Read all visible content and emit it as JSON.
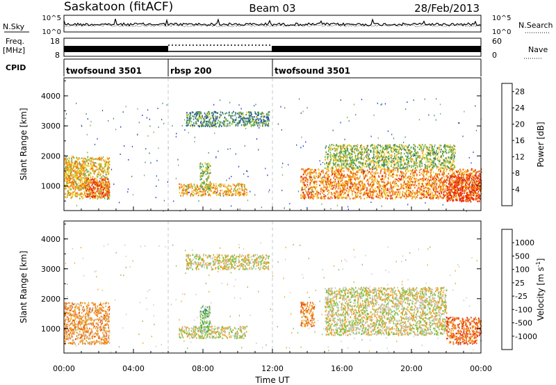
{
  "header": {
    "station": "Saskatoon (fitACF)",
    "beam": "Beam 03",
    "date": "28/Feb/2013"
  },
  "side_labels": {
    "nsky": "N.Sky",
    "nsearch": "N.Search",
    "freq_line1": "Freq.",
    "freq_line2": "[MHz]",
    "nave": "Nave",
    "cpid": "CPID"
  },
  "noise_panel": {
    "left_ticks": [
      "10^5",
      "10^0"
    ],
    "right_ticks": [
      "10^5",
      "10^0"
    ]
  },
  "freq_panel": {
    "left_ticks": [
      "18",
      "8"
    ],
    "right_ticks": [
      "60",
      "0"
    ]
  },
  "cpid_segments": [
    {
      "label": "twofsound 3501",
      "start_h": 0,
      "end_h": 6
    },
    {
      "label": "rbsp 200",
      "start_h": 6,
      "end_h": 12
    },
    {
      "label": "twofsound 3501",
      "start_h": 12,
      "end_h": 24
    }
  ],
  "colors": {
    "power_scale": [
      "#1c2fe0",
      "#2a4fa0",
      "#3f8a5c",
      "#6ab14a",
      "#f0d02c",
      "#f39a1b",
      "#f06a12",
      "#e8240e"
    ],
    "velocity_scale": [
      "#1f35d8",
      "#2f6ec0",
      "#3a9a50",
      "#7ac23c",
      "#c8c8c0",
      "#f0a020",
      "#f07818",
      "#e84010",
      "#e01010"
    ]
  },
  "chart_data": [
    {
      "type": "heatmap",
      "title": "",
      "quantity": "Power",
      "xlabel": "Time UT",
      "ylabel": "Slant Range [km]",
      "x_ticks": [
        "00:00",
        "04:00",
        "08:00",
        "12:00",
        "16:00",
        "20:00",
        "00:00"
      ],
      "y_ticks": [
        "1000",
        "2000",
        "3000",
        "4000"
      ],
      "xlim_hours": [
        0,
        24
      ],
      "ylim_km": [
        180,
        4600
      ],
      "colorbar_label": "Power [dB]",
      "colorbar_ticks": [
        "4",
        "8",
        "12",
        "16",
        "20",
        "24",
        "28"
      ],
      "colorbar_range": [
        0,
        30
      ],
      "scatter_regions": [
        {
          "t0": 0.0,
          "t1": 2.6,
          "r0": 600,
          "r1": 2000,
          "value": 18
        },
        {
          "t0": 1.2,
          "t1": 2.6,
          "r0": 650,
          "r1": 1300,
          "value": 26
        },
        {
          "t0": 0.0,
          "t1": 1.2,
          "r0": 900,
          "r1": 1800,
          "value": 20
        },
        {
          "t0": 6.6,
          "t1": 10.5,
          "r0": 700,
          "r1": 1100,
          "value": 20
        },
        {
          "t0": 7.8,
          "t1": 8.4,
          "r0": 900,
          "r1": 1800,
          "value": 14
        },
        {
          "t0": 7.0,
          "t1": 11.8,
          "r0": 3000,
          "r1": 3500,
          "value": 10
        },
        {
          "t0": 13.6,
          "t1": 24.0,
          "r0": 600,
          "r1": 1600,
          "value": 22
        },
        {
          "t0": 15.0,
          "t1": 22.5,
          "r0": 1600,
          "r1": 2400,
          "value": 14
        },
        {
          "t0": 22.0,
          "t1": 24.0,
          "r0": 500,
          "r1": 1400,
          "value": 28
        }
      ]
    },
    {
      "type": "heatmap",
      "title": "",
      "quantity": "Velocity",
      "xlabel": "Time UT",
      "ylabel": "Slant Range [km]",
      "x_ticks": [
        "00:00",
        "04:00",
        "08:00",
        "12:00",
        "16:00",
        "20:00",
        "00:00"
      ],
      "y_ticks": [
        "1000",
        "2000",
        "3000",
        "4000"
      ],
      "xlim_hours": [
        0,
        24
      ],
      "ylim_km": [
        180,
        4600
      ],
      "colorbar_label": "Velocity [m s^-1]",
      "colorbar_ticks": [
        "1000",
        "500",
        "100",
        "25",
        "-25",
        "-100",
        "-500",
        "-1000"
      ],
      "scatter_regions": [
        {
          "t0": 0.0,
          "t1": 2.6,
          "r0": 500,
          "r1": 1900,
          "value": -300
        },
        {
          "t0": 6.6,
          "t1": 10.5,
          "r0": 700,
          "r1": 1100,
          "value": 0
        },
        {
          "t0": 7.8,
          "t1": 8.4,
          "r0": 900,
          "r1": 1800,
          "value": 300
        },
        {
          "t0": 7.0,
          "t1": 11.8,
          "r0": 3000,
          "r1": 3500,
          "value": 0
        },
        {
          "t0": 13.6,
          "t1": 14.4,
          "r0": 1100,
          "r1": 1900,
          "value": -400
        },
        {
          "t0": 15.0,
          "t1": 22.0,
          "r0": 800,
          "r1": 2400,
          "value": 0
        },
        {
          "t0": 22.0,
          "t1": 24.0,
          "r0": 500,
          "r1": 1400,
          "value": -500
        }
      ]
    }
  ]
}
